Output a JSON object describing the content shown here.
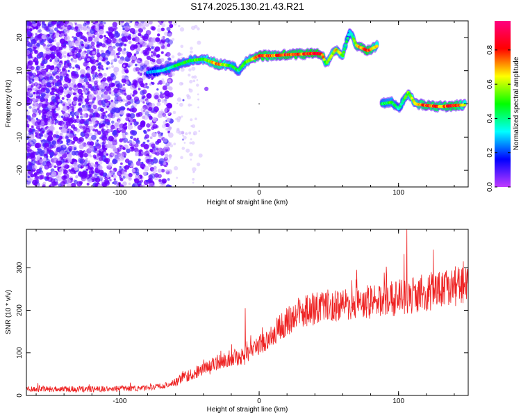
{
  "title": "S174.2025.130.21.43.R21",
  "chart_data": [
    {
      "type": "heatmap",
      "xlabel": "Height of straight line (km)",
      "ylabel": "Frequency (Hz)",
      "xlim": [
        -167,
        150
      ],
      "ylim": [
        -25,
        25
      ],
      "xticks": [
        -100,
        0,
        100
      ],
      "yticks": [
        -20,
        -10,
        0,
        10,
        20
      ],
      "colorbar": {
        "label": "Normalized spectral amplitude",
        "range": [
          0.0,
          0.97
        ],
        "ticks": [
          0.0,
          0.2,
          0.4,
          0.6,
          0.8
        ],
        "colors": [
          "#c03cff",
          "#0000ff",
          "#00ffff",
          "#00ff00",
          "#ffff00",
          "#ff0000",
          "#ff0080"
        ]
      },
      "ridge": [
        {
          "x": -80,
          "y": 9.5,
          "v": 0.25
        },
        {
          "x": -70,
          "y": 10,
          "v": 0.35
        },
        {
          "x": -60,
          "y": 11.5,
          "v": 0.45
        },
        {
          "x": -50,
          "y": 13,
          "v": 0.5
        },
        {
          "x": -40,
          "y": 13.5,
          "v": 0.55
        },
        {
          "x": -30,
          "y": 12,
          "v": 0.75
        },
        {
          "x": -20,
          "y": 11.5,
          "v": 0.5
        },
        {
          "x": -15,
          "y": 10,
          "v": 0.45
        },
        {
          "x": -10,
          "y": 12.5,
          "v": 0.55
        },
        {
          "x": 0,
          "y": 14.5,
          "v": 0.85
        },
        {
          "x": 10,
          "y": 14.5,
          "v": 0.75
        },
        {
          "x": 20,
          "y": 14.8,
          "v": 0.85
        },
        {
          "x": 30,
          "y": 15,
          "v": 0.8
        },
        {
          "x": 40,
          "y": 15.2,
          "v": 0.9
        },
        {
          "x": 45,
          "y": 15,
          "v": 0.85
        },
        {
          "x": 48,
          "y": 12,
          "v": 0.5
        },
        {
          "x": 55,
          "y": 16.5,
          "v": 0.7
        },
        {
          "x": 60,
          "y": 14.5,
          "v": 0.6
        },
        {
          "x": 65,
          "y": 22,
          "v": 0.3
        },
        {
          "x": 70,
          "y": 17.5,
          "v": 0.75
        },
        {
          "x": 78,
          "y": 16,
          "v": 0.85
        },
        {
          "x": 85,
          "y": 17.5,
          "v": 0.6
        },
        {
          "x": 88,
          "y": 0,
          "v": 0.45
        },
        {
          "x": 95,
          "y": 0.5,
          "v": 0.5
        },
        {
          "x": 100,
          "y": -1.5,
          "v": 0.4
        },
        {
          "x": 107,
          "y": 3.5,
          "v": 0.55
        },
        {
          "x": 112,
          "y": 0,
          "v": 0.65
        },
        {
          "x": 120,
          "y": -0.5,
          "v": 0.8
        },
        {
          "x": 130,
          "y": -0.8,
          "v": 0.75
        },
        {
          "x": 140,
          "y": -0.5,
          "v": 0.85
        },
        {
          "x": 148,
          "y": -0.3,
          "v": 0.6
        }
      ]
    },
    {
      "type": "line",
      "xlabel": "Height of straight line (km)",
      "ylabel": "SNR (10 * v/v)",
      "xlim": [
        -167,
        150
      ],
      "ylim": [
        0,
        390
      ],
      "xticks": [
        -100,
        0,
        100
      ],
      "yticks": [
        0,
        100,
        200,
        300
      ],
      "color": "#ee2222",
      "trend": [
        {
          "x": -167,
          "y": 15
        },
        {
          "x": -120,
          "y": 15
        },
        {
          "x": -80,
          "y": 17
        },
        {
          "x": -65,
          "y": 25
        },
        {
          "x": -55,
          "y": 40
        },
        {
          "x": -45,
          "y": 55
        },
        {
          "x": -35,
          "y": 70
        },
        {
          "x": -25,
          "y": 85
        },
        {
          "x": -15,
          "y": 90
        },
        {
          "x": -5,
          "y": 105
        },
        {
          "x": 5,
          "y": 130
        },
        {
          "x": 15,
          "y": 160
        },
        {
          "x": 25,
          "y": 185
        },
        {
          "x": 35,
          "y": 200
        },
        {
          "x": 50,
          "y": 210
        },
        {
          "x": 70,
          "y": 215
        },
        {
          "x": 90,
          "y": 225
        },
        {
          "x": 110,
          "y": 235
        },
        {
          "x": 130,
          "y": 250
        },
        {
          "x": 150,
          "y": 262
        }
      ],
      "spikes": [
        {
          "x": -10,
          "y": 205
        },
        {
          "x": 70,
          "y": 295
        },
        {
          "x": 104,
          "y": 332
        },
        {
          "x": 106,
          "y": 390
        },
        {
          "x": 150,
          "y": 315
        }
      ]
    }
  ]
}
